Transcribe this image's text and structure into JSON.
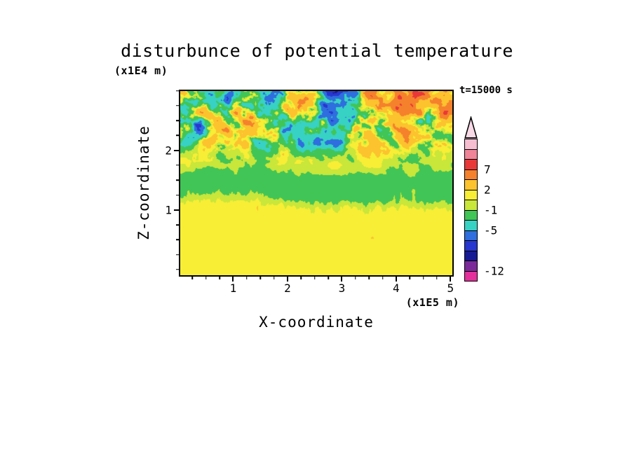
{
  "chart_data": {
    "type": "heatmap",
    "title": "disturbunce of potential temperature",
    "xlabel": "X-coordinate",
    "ylabel": "Z-coordinate",
    "x_unit_label": "(x1E5 m)",
    "y_unit_label": "(x1E4 m)",
    "time_label": "t=15000 s",
    "xlim": [
      0,
      5.06
    ],
    "ylim": [
      -0.12,
      3.02
    ],
    "x_ticks": [
      1,
      2,
      3,
      4,
      5
    ],
    "y_ticks": [
      1,
      2
    ],
    "minor_tick_step": 0.25,
    "grid": false,
    "legend_position": "right",
    "levels_high_to_low": [
      12,
      9.5,
      7,
      4.5,
      2,
      0.5,
      -1,
      -3,
      -5,
      -6.75,
      -8.5,
      -10.25,
      -12
    ],
    "palette_high_to_low": [
      "#f6bcd0",
      "#ef8499",
      "#e93838",
      "#f5812c",
      "#fcc32e",
      "#f7ee35",
      "#c9e63a",
      "#41c556",
      "#37d2c3",
      "#2e6ede",
      "#2737cf",
      "#171b93",
      "#7c2a99",
      "#e3309b"
    ],
    "colorbar_labels": [
      {
        "value": 7,
        "label": "7"
      },
      {
        "value": 2,
        "label": "2"
      },
      {
        "value": -1,
        "label": "-1"
      },
      {
        "value": -5,
        "label": "-5"
      },
      {
        "value": -12,
        "label": "-12"
      }
    ],
    "colorbar_arrow_fill": "#f8d9e6",
    "render_seed": 3,
    "field_summary": "Turbulent 2D disturbance field: yellow background (about 0 to 2) with orange blobs below z of about 1x10^4 m, a green/cyan band (about -3 to 0) near z of 1.2-1.6x10^4 m, and strong plus/minus 12 convective turbulence (blue/navy/red/orange patches) from z of about 1.6x10^4 m to the domain top."
  }
}
